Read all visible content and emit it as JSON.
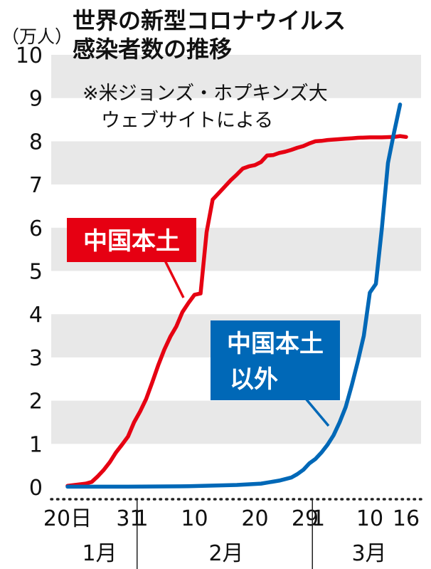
{
  "chart_data": {
    "type": "line",
    "title": [
      "世界の新型コロナウイルス",
      "感染者数の推移"
    ],
    "note": [
      "※米ジョンズ・ホプキンズ大",
      "ウェブサイトによる"
    ],
    "unit_label": "（万人）",
    "ylim": [
      0,
      10
    ],
    "y_ticks": [
      "0",
      "1",
      "2",
      "3",
      "4",
      "5",
      "6",
      "7",
      "8",
      "9",
      "10"
    ],
    "x_ticks": [
      {
        "day": 0,
        "label": "20日"
      },
      {
        "day": 11,
        "label": "31"
      },
      {
        "day": 12,
        "label": "1"
      },
      {
        "day": 21,
        "label": "10"
      },
      {
        "day": 31,
        "label": "20"
      },
      {
        "day": 40,
        "label": "29"
      },
      {
        "day": 41,
        "label": "1"
      },
      {
        "day": 50,
        "label": "10"
      },
      {
        "day": 56,
        "label": "16"
      }
    ],
    "months": [
      {
        "label": "1月",
        "from": 0,
        "to": 11.5
      },
      {
        "label": "2月",
        "from": 11.5,
        "to": 40.5
      },
      {
        "label": "3月",
        "from": 40.5,
        "to": 56
      }
    ],
    "grid_bands": true,
    "series": [
      {
        "name": "中国本土",
        "color": "#e60012",
        "points": [
          [
            0,
            0.03
          ],
          [
            3,
            0.08
          ],
          [
            4,
            0.12
          ],
          [
            5,
            0.25
          ],
          [
            6,
            0.4
          ],
          [
            7,
            0.58
          ],
          [
            8,
            0.8
          ],
          [
            9,
            0.98
          ],
          [
            10,
            1.17
          ],
          [
            11,
            1.5
          ],
          [
            12,
            1.75
          ],
          [
            13,
            2.04
          ],
          [
            14,
            2.42
          ],
          [
            15,
            2.82
          ],
          [
            16,
            3.18
          ],
          [
            17,
            3.48
          ],
          [
            18,
            3.72
          ],
          [
            19,
            4.05
          ],
          [
            20,
            4.26
          ],
          [
            21,
            4.45
          ],
          [
            22,
            4.48
          ],
          [
            23,
            5.9
          ],
          [
            24,
            6.65
          ],
          [
            25,
            6.8
          ],
          [
            26,
            6.95
          ],
          [
            27,
            7.1
          ],
          [
            28,
            7.23
          ],
          [
            29,
            7.37
          ],
          [
            30,
            7.42
          ],
          [
            31,
            7.45
          ],
          [
            32,
            7.52
          ],
          [
            33,
            7.67
          ],
          [
            34,
            7.68
          ],
          [
            35,
            7.73
          ],
          [
            36,
            7.76
          ],
          [
            37,
            7.8
          ],
          [
            38,
            7.85
          ],
          [
            39,
            7.89
          ],
          [
            40,
            7.95
          ],
          [
            41,
            8.0
          ],
          [
            42,
            8.01
          ],
          [
            43,
            8.03
          ],
          [
            44,
            8.04
          ],
          [
            45,
            8.05
          ],
          [
            46,
            8.06
          ],
          [
            47,
            8.07
          ],
          [
            48,
            8.08
          ],
          [
            50,
            8.09
          ],
          [
            52,
            8.09
          ],
          [
            54,
            8.1
          ],
          [
            55,
            8.12
          ],
          [
            56,
            8.1
          ]
        ]
      },
      {
        "name": "中国本土以外",
        "name_lines": [
          "中国本土",
          "以外"
        ],
        "color": "#0068b7",
        "points": [
          [
            0,
            0.01
          ],
          [
            10,
            0.01
          ],
          [
            20,
            0.02
          ],
          [
            28,
            0.05
          ],
          [
            32,
            0.08
          ],
          [
            35,
            0.15
          ],
          [
            37,
            0.22
          ],
          [
            38,
            0.3
          ],
          [
            39,
            0.4
          ],
          [
            40,
            0.55
          ],
          [
            41,
            0.65
          ],
          [
            42,
            0.8
          ],
          [
            43,
            0.98
          ],
          [
            44,
            1.2
          ],
          [
            45,
            1.5
          ],
          [
            46,
            1.85
          ],
          [
            47,
            2.35
          ],
          [
            48,
            2.9
          ],
          [
            49,
            3.5
          ],
          [
            50,
            4.5
          ],
          [
            51,
            4.7
          ],
          [
            52,
            6.0
          ],
          [
            53,
            7.5
          ],
          [
            54,
            8.2
          ],
          [
            55,
            8.85
          ]
        ]
      }
    ]
  }
}
